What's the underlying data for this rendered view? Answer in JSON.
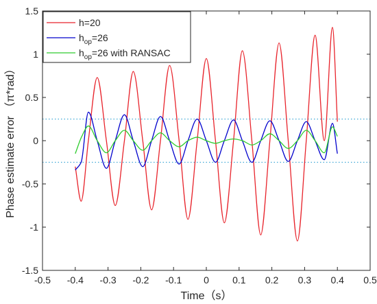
{
  "chart_data": {
    "type": "line",
    "xlabel": "Time（s）",
    "ylabel": "Phase estimate error （π*rad）",
    "xlim": [
      -0.5,
      0.5
    ],
    "ylim": [
      -1.5,
      1.5
    ],
    "xticks": [
      -0.5,
      -0.4,
      -0.3,
      -0.2,
      -0.1,
      0,
      0.1,
      0.2,
      0.3,
      0.4,
      0.5
    ],
    "xtick_labels": [
      "-0.5",
      "-0.4",
      "-0.3",
      "-0.2",
      "-0.1",
      "0",
      "0.1",
      "0.2",
      "0.3",
      "0.4",
      "0.5"
    ],
    "yticks": [
      -1.5,
      -1,
      -0.5,
      0,
      0.5,
      1,
      1.5
    ],
    "ytick_labels": [
      "-1.5",
      "-1",
      "-0.5",
      "0",
      "0.5",
      "1",
      "1.5"
    ],
    "grid": false,
    "legend_position": "top-left",
    "reference_lines": [
      {
        "y": 0.25,
        "color": "#3fa7d6",
        "style": "dotted"
      },
      {
        "y": -0.25,
        "color": "#3fa7d6",
        "style": "dotted"
      }
    ],
    "series": [
      {
        "name": "h=20",
        "legend_parts": {
          "main": "h=20",
          "sub": "",
          "rest": ""
        },
        "color": "#e8232b",
        "x": [
          -0.4,
          -0.382,
          -0.36,
          -0.333,
          -0.305,
          -0.278,
          -0.25,
          -0.223,
          -0.194,
          -0.167,
          -0.14,
          -0.112,
          -0.083,
          -0.056,
          -0.028,
          0,
          0.028,
          0.055,
          0.083,
          0.11,
          0.139,
          0.166,
          0.194,
          0.222,
          0.25,
          0.278,
          0.305,
          0.332,
          0.36,
          0.385,
          0.4
        ],
        "y": [
          -0.3,
          -0.7,
          0.0,
          0.73,
          0.0,
          -0.75,
          0.0,
          0.8,
          0.0,
          -0.8,
          0.0,
          0.87,
          0.0,
          -0.91,
          0.0,
          0.95,
          0.0,
          -0.95,
          0.0,
          1.04,
          0.0,
          -1.09,
          0.0,
          1.13,
          0.0,
          -1.16,
          0.0,
          1.22,
          0.0,
          1.31,
          0.22
        ]
      },
      {
        "name": "hop=26",
        "legend_parts": {
          "main": "h",
          "sub": "op",
          "rest": "=26"
        },
        "color": "#0000cc",
        "x": [
          -0.4,
          -0.382,
          -0.36,
          -0.333,
          -0.305,
          -0.278,
          -0.25,
          -0.223,
          -0.194,
          -0.167,
          -0.14,
          -0.112,
          -0.083,
          -0.056,
          -0.028,
          0,
          0.028,
          0.055,
          0.083,
          0.11,
          0.139,
          0.166,
          0.194,
          0.222,
          0.25,
          0.278,
          0.305,
          0.332,
          0.36,
          0.385,
          0.4
        ],
        "y": [
          -0.34,
          -0.25,
          0.33,
          0.0,
          -0.32,
          0.0,
          0.3,
          0.0,
          -0.3,
          0.0,
          0.28,
          0.0,
          -0.27,
          0.0,
          0.25,
          0.0,
          -0.25,
          0.0,
          0.24,
          0.0,
          -0.25,
          0.0,
          0.23,
          0.0,
          -0.24,
          0.0,
          0.22,
          0.0,
          -0.22,
          0.2,
          -0.15
        ]
      },
      {
        "name": "hop=26 with RANSAC",
        "legend_parts": {
          "main": "h",
          "sub": "op",
          "rest": "=26 with RANSAC"
        },
        "color": "#2ecc2e",
        "x": [
          -0.4,
          -0.38,
          -0.36,
          -0.333,
          -0.305,
          -0.278,
          -0.25,
          -0.223,
          -0.194,
          -0.167,
          -0.14,
          -0.112,
          -0.083,
          -0.056,
          -0.028,
          0,
          0.028,
          0.055,
          0.083,
          0.11,
          0.139,
          0.166,
          0.194,
          0.222,
          0.25,
          0.278,
          0.305,
          0.332,
          0.36,
          0.385,
          0.4
        ],
        "y": [
          -0.15,
          0.05,
          0.17,
          0.0,
          -0.14,
          0.0,
          0.12,
          0.0,
          -0.11,
          0.0,
          0.09,
          0.0,
          -0.07,
          0.0,
          0.04,
          0.0,
          -0.03,
          0.0,
          0.02,
          0.0,
          -0.05,
          0.0,
          0.08,
          0.0,
          -0.09,
          0.0,
          0.12,
          0.0,
          -0.14,
          0.16,
          0.05
        ]
      }
    ]
  }
}
